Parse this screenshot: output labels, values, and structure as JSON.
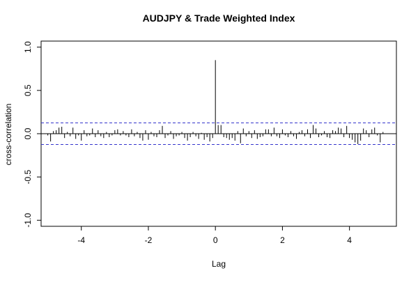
{
  "chart_data": {
    "type": "bar",
    "title": "AUDJPY & Trade Weighted Index",
    "xlabel": "Lag",
    "ylabel": "cross-correlation",
    "xlim": [
      -5.2,
      5.4
    ],
    "ylim": [
      -1.07,
      1.07
    ],
    "x_ticks": [
      -4,
      -2,
      0,
      2,
      4
    ],
    "x_tick_labels": [
      "-4",
      "-2",
      "0",
      "2",
      "4"
    ],
    "y_ticks": [
      -1.0,
      -0.5,
      0.0,
      0.5,
      1.0
    ],
    "y_tick_labels": [
      "-1.0",
      "-0.5",
      "0.0",
      "0.5",
      "1.0"
    ],
    "confidence_bound": 0.125,
    "bound_color": "#3333cc",
    "bar_color": "#000000",
    "lag_step": 0.0833,
    "x": [
      -5.0,
      -4.917,
      -4.833,
      -4.75,
      -4.667,
      -4.583,
      -4.5,
      -4.417,
      -4.333,
      -4.25,
      -4.167,
      -4.083,
      -4.0,
      -3.917,
      -3.833,
      -3.75,
      -3.667,
      -3.583,
      -3.5,
      -3.417,
      -3.333,
      -3.25,
      -3.167,
      -3.083,
      -3.0,
      -2.917,
      -2.833,
      -2.75,
      -2.667,
      -2.583,
      -2.5,
      -2.417,
      -2.333,
      -2.25,
      -2.167,
      -2.083,
      -2.0,
      -1.917,
      -1.833,
      -1.75,
      -1.667,
      -1.583,
      -1.5,
      -1.417,
      -1.333,
      -1.25,
      -1.167,
      -1.083,
      -1.0,
      -0.917,
      -0.833,
      -0.75,
      -0.667,
      -0.583,
      -0.5,
      -0.417,
      -0.333,
      -0.25,
      -0.167,
      -0.083,
      0.0,
      0.083,
      0.167,
      0.25,
      0.333,
      0.417,
      0.5,
      0.583,
      0.667,
      0.75,
      0.833,
      0.917,
      1.0,
      1.083,
      1.167,
      1.25,
      1.333,
      1.417,
      1.5,
      1.583,
      1.667,
      1.75,
      1.833,
      1.917,
      2.0,
      2.083,
      2.167,
      2.25,
      2.333,
      2.417,
      2.5,
      2.583,
      2.667,
      2.75,
      2.833,
      2.917,
      3.0,
      3.083,
      3.167,
      3.25,
      3.333,
      3.417,
      3.5,
      3.583,
      3.667,
      3.75,
      3.833,
      3.917,
      4.0,
      4.083,
      4.167,
      4.25,
      4.333,
      4.417,
      4.5,
      4.583,
      4.667,
      4.75,
      4.833,
      4.917,
      5.0
    ],
    "values": [
      -0.02,
      -0.09,
      0.03,
      0.04,
      0.07,
      0.08,
      -0.05,
      0.02,
      -0.03,
      0.07,
      -0.06,
      -0.02,
      -0.08,
      0.04,
      -0.03,
      -0.02,
      0.06,
      -0.04,
      0.04,
      -0.03,
      -0.05,
      0.02,
      -0.04,
      -0.02,
      0.04,
      0.05,
      -0.02,
      0.03,
      -0.02,
      -0.04,
      0.05,
      -0.03,
      0.02,
      -0.05,
      -0.08,
      0.04,
      -0.07,
      0.02,
      -0.03,
      -0.04,
      0.04,
      0.09,
      -0.05,
      -0.02,
      0.03,
      -0.06,
      -0.03,
      -0.02,
      0.02,
      -0.05,
      -0.08,
      -0.04,
      0.02,
      -0.03,
      -0.06,
      0.01,
      -0.07,
      -0.04,
      -0.09,
      -0.05,
      0.85,
      0.1,
      0.1,
      -0.04,
      -0.05,
      -0.07,
      -0.05,
      -0.08,
      0.03,
      -0.11,
      0.06,
      -0.03,
      0.03,
      -0.05,
      0.04,
      -0.06,
      -0.04,
      -0.03,
      0.05,
      0.05,
      -0.03,
      0.07,
      -0.03,
      -0.05,
      0.05,
      -0.02,
      -0.04,
      0.03,
      -0.03,
      -0.06,
      0.02,
      0.04,
      -0.03,
      0.05,
      -0.05,
      0.1,
      0.06,
      -0.04,
      -0.02,
      0.03,
      -0.04,
      -0.05,
      0.04,
      0.03,
      0.07,
      0.06,
      -0.04,
      0.09,
      -0.05,
      -0.07,
      -0.1,
      -0.12,
      -0.08,
      0.06,
      0.04,
      -0.04,
      0.05,
      0.07,
      -0.02,
      -0.1,
      0.02
    ]
  }
}
